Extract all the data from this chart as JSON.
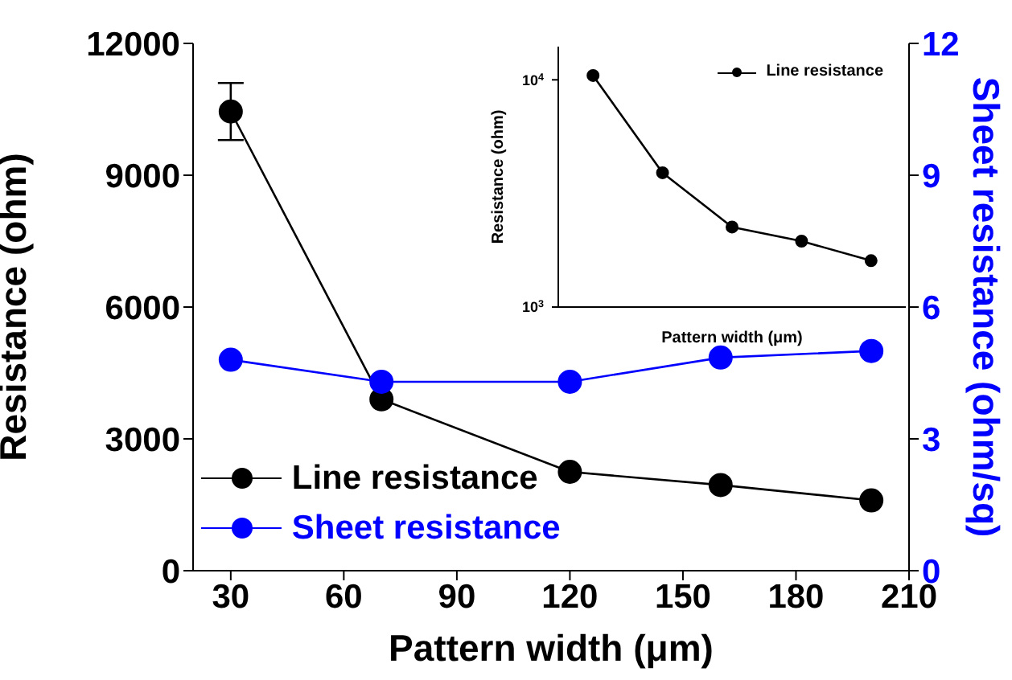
{
  "chart_data": [
    {
      "type": "line",
      "xlabel": "Pattern width (μm)",
      "ylabel": "Resistance (ohm)",
      "y2label": "Sheet resistance (ohm/sq)",
      "x": [
        30,
        70,
        120,
        160,
        200
      ],
      "series": [
        {
          "name": "Line resistance",
          "color": "#000000",
          "values": [
            10450,
            3900,
            2250,
            1950,
            1600
          ],
          "errors": [
            [
              9800,
              11100
            ],
            null,
            null,
            null,
            null
          ]
        },
        {
          "name": "Sheet resistance",
          "color": "#0000ff",
          "values": [
            4.8,
            4.3,
            4.3,
            4.85,
            5.0
          ],
          "axis": "y2"
        }
      ],
      "xlim": [
        20,
        210
      ],
      "xticks": [
        30,
        60,
        90,
        120,
        150,
        180,
        210
      ],
      "ylim": [
        0,
        12000
      ],
      "yticks": [
        0,
        3000,
        6000,
        9000,
        12000
      ],
      "y2lim": [
        0,
        12
      ],
      "y2ticks": [
        0,
        3,
        6,
        9,
        12
      ],
      "marker": "circle",
      "line_style": "solid",
      "legend": "bottom left",
      "grid": false
    },
    {
      "type": "line",
      "xlabel": "Pattern width (μm)",
      "ylabel": "Resistance (ohm)",
      "categories": [
        null,
        null,
        null,
        null,
        null
      ],
      "series": [
        {
          "name": "Line resistance",
          "color": "#000000",
          "values": [
            10450,
            3900,
            2250,
            1950,
            1600
          ]
        }
      ],
      "ylim": [
        1000,
        14000
      ],
      "yticks": [
        {
          "value": 1000,
          "label": "10$^{3}$"
        },
        {
          "value": 10000,
          "label": "10$^{4}$"
        }
      ],
      "log": "y",
      "tick_labels": "y",
      "marker": "circle",
      "line_style": "solid",
      "legend": "top right",
      "grid": false
    }
  ]
}
